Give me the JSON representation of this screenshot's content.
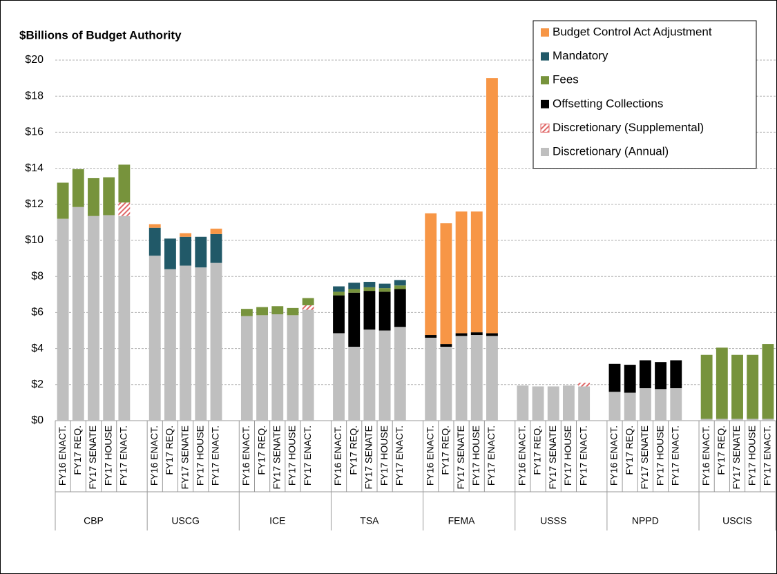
{
  "chart_data": {
    "type": "bar",
    "stacked": true,
    "title": "$Billions of Budget Authority",
    "groups": [
      "CBP",
      "USCG",
      "ICE",
      "TSA",
      "FEMA",
      "USSS",
      "NPPD",
      "USCIS"
    ],
    "categories": [
      "FY16 ENACT.",
      "FY17 REQ.",
      "FY17 SENATE",
      "FY17 HOUSE",
      "FY17 ENACT.",
      "FY16 ENACT.",
      "FY17 REQ.",
      "FY17 SENATE",
      "FY17 HOUSE",
      "FY17 ENACT.",
      "FY16 ENACT.",
      "FY17 REQ.",
      "FY17 SENATE",
      "FY17 HOUSE",
      "FY17 ENACT.",
      "FY16 ENACT.",
      "FY17 REQ.",
      "FY17 SENATE",
      "FY17 HOUSE",
      "FY17 ENACT.",
      "FY16 ENACT.",
      "FY17 REQ.",
      "FY17 SENATE",
      "FY17 HOUSE",
      "FY17 ENACT.",
      "FY16 ENACT.",
      "FY17 REQ.",
      "FY17 SENATE",
      "FY17 HOUSE",
      "FY17 ENACT.",
      "FY16 ENACT.",
      "FY17 REQ.",
      "FY17 SENATE",
      "FY17 HOUSE",
      "FY17 ENACT.",
      "FY16 ENACT.",
      "FY17 REQ.",
      "FY17 SENATE",
      "FY17 HOUSE",
      "FY17 ENACT."
    ],
    "series": [
      {
        "name": "Discretionary (Annual)",
        "color": "#bfbfbf",
        "values": [
          11.2,
          11.85,
          11.35,
          11.4,
          11.35,
          9.15,
          8.4,
          8.6,
          8.5,
          8.75,
          5.8,
          5.85,
          5.9,
          5.85,
          6.15,
          4.85,
          4.1,
          5.05,
          5.0,
          5.2,
          4.6,
          4.1,
          4.7,
          4.75,
          4.7,
          1.95,
          1.9,
          1.9,
          1.95,
          1.9,
          1.6,
          1.55,
          1.8,
          1.75,
          1.8,
          0.1,
          0.1,
          0.1,
          0.1,
          0.1
        ]
      },
      {
        "name": "Discretionary (Supplemental)",
        "color": "#e06666",
        "hatch": true,
        "values": [
          null,
          null,
          null,
          null,
          0.75,
          null,
          null,
          null,
          null,
          null,
          null,
          null,
          null,
          null,
          0.25,
          null,
          null,
          null,
          null,
          null,
          null,
          null,
          null,
          null,
          null,
          null,
          null,
          null,
          null,
          0.2,
          null,
          null,
          null,
          null,
          null,
          null,
          null,
          null,
          null,
          null
        ]
      },
      {
        "name": "Offsetting Collections",
        "color": "#000000",
        "values": [
          null,
          null,
          null,
          null,
          null,
          null,
          null,
          null,
          null,
          null,
          null,
          null,
          null,
          null,
          null,
          2.1,
          3.0,
          2.15,
          2.15,
          2.1,
          0.15,
          0.15,
          0.15,
          0.15,
          0.15,
          null,
          null,
          null,
          null,
          null,
          1.55,
          1.55,
          1.55,
          1.5,
          1.55,
          null,
          null,
          null,
          null,
          null
        ]
      },
      {
        "name": "Fees",
        "color": "#77933c",
        "values": [
          2.0,
          2.1,
          2.1,
          2.1,
          2.1,
          null,
          null,
          null,
          null,
          null,
          0.4,
          0.45,
          0.45,
          0.4,
          0.4,
          0.2,
          0.2,
          0.2,
          0.2,
          0.2,
          null,
          null,
          null,
          null,
          null,
          null,
          null,
          null,
          null,
          null,
          null,
          null,
          null,
          null,
          null,
          3.55,
          3.95,
          3.55,
          3.55,
          4.15
        ]
      },
      {
        "name": "Mandatory",
        "color": "#215968",
        "values": [
          null,
          null,
          null,
          null,
          null,
          1.55,
          1.7,
          1.6,
          1.7,
          1.6,
          null,
          null,
          null,
          null,
          null,
          0.3,
          0.35,
          0.3,
          0.25,
          0.3,
          null,
          null,
          null,
          null,
          null,
          null,
          null,
          null,
          null,
          null,
          null,
          null,
          null,
          null,
          null,
          null,
          null,
          null,
          null,
          null
        ]
      },
      {
        "name": "Budget Control Act Adjustment",
        "color": "#f79646",
        "values": [
          null,
          null,
          null,
          null,
          null,
          0.2,
          null,
          0.2,
          null,
          0.3,
          null,
          null,
          null,
          null,
          null,
          null,
          null,
          null,
          null,
          null,
          6.75,
          6.7,
          6.75,
          6.7,
          14.15,
          null,
          null,
          null,
          null,
          null,
          null,
          null,
          null,
          null,
          null,
          null,
          null,
          null,
          null,
          null
        ]
      }
    ],
    "ylim": [
      0,
      20
    ],
    "yticks": [
      {
        "value": 0,
        "label": "$0"
      },
      {
        "value": 2,
        "label": "$2"
      },
      {
        "value": 4,
        "label": "$4"
      },
      {
        "value": 6,
        "label": "$6"
      },
      {
        "value": 8,
        "label": "$8"
      },
      {
        "value": 10,
        "label": "$10"
      },
      {
        "value": 12,
        "label": "$12"
      },
      {
        "value": 14,
        "label": "$14"
      },
      {
        "value": 16,
        "label": "$16"
      },
      {
        "value": 18,
        "label": "$18"
      },
      {
        "value": 20,
        "label": "$20"
      }
    ],
    "grid": true,
    "legend": "top-right"
  }
}
